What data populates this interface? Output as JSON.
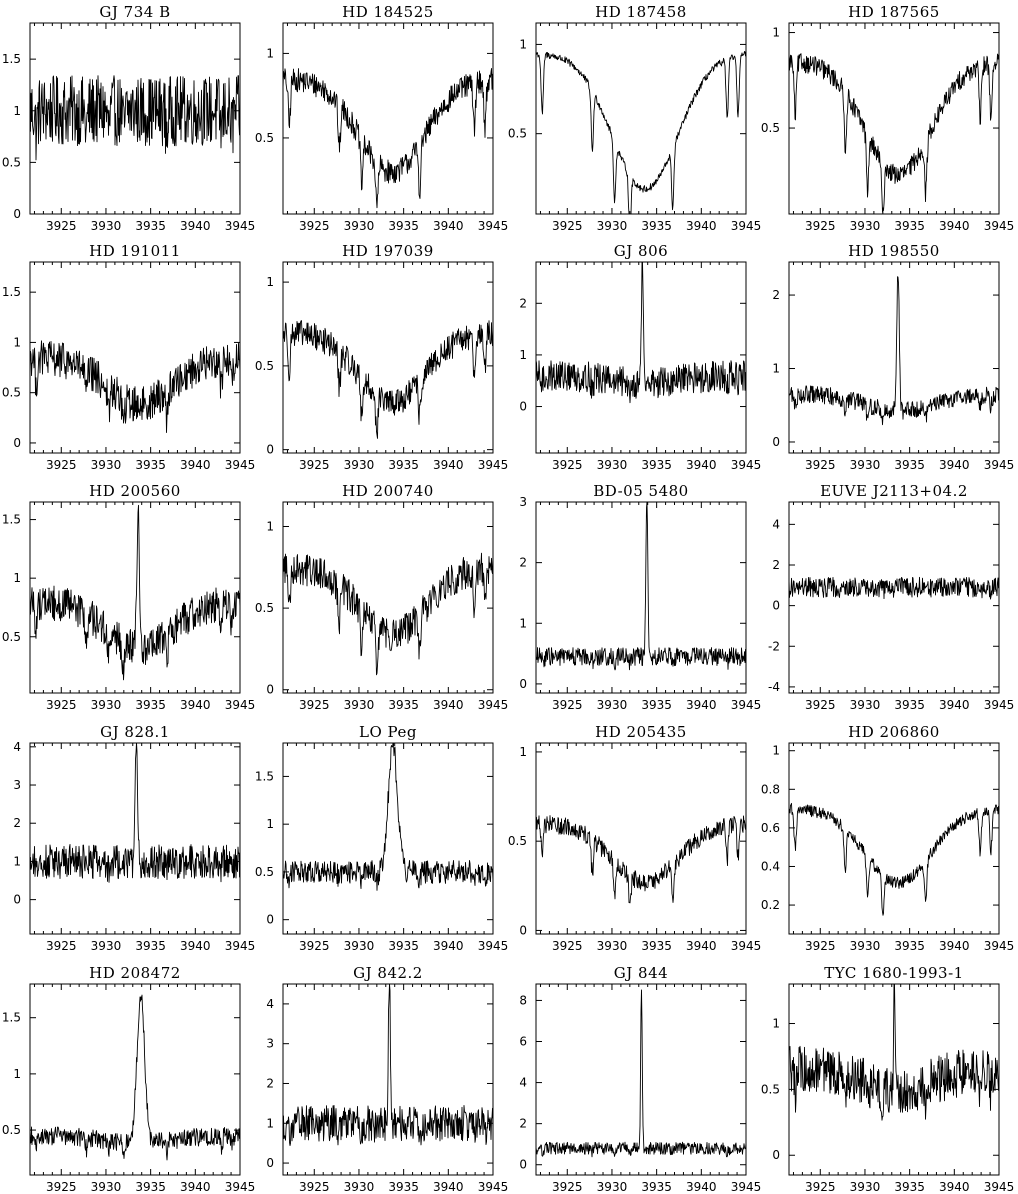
{
  "figure": {
    "background": "#ffffff",
    "line_color": "#000000"
  },
  "chart_data": [
    {
      "type": "line",
      "title": "GJ 734 B",
      "xlim": [
        3921.5,
        3945
      ],
      "ylim": [
        0,
        1.85
      ],
      "xticks": [
        3925,
        3930,
        3935,
        3940,
        3945
      ],
      "yticks": [
        0,
        0.5,
        1,
        1.5
      ],
      "base": 1.0,
      "spike": null,
      "depth": 0.0,
      "noise": 0.34
    },
    {
      "type": "line",
      "title": "HD 184525",
      "xlim": [
        3921.5,
        3945
      ],
      "ylim": [
        0.05,
        1.18
      ],
      "xticks": [
        3925,
        3930,
        3935,
        3940,
        3945
      ],
      "yticks": [
        0.5,
        1
      ],
      "base": 0.85,
      "spike": null,
      "depth": 0.65,
      "noise": 0.07
    },
    {
      "type": "line",
      "title": "HD 187458",
      "xlim": [
        3921.5,
        3945
      ],
      "ylim": [
        0.05,
        1.12
      ],
      "xticks": [
        3925,
        3930,
        3935,
        3940,
        3945
      ],
      "yticks": [
        0.5,
        1
      ],
      "base": 0.95,
      "spike": null,
      "depth": 0.8,
      "noise": 0.02
    },
    {
      "type": "line",
      "title": "HD 187565",
      "xlim": [
        3921.5,
        3945
      ],
      "ylim": [
        0.05,
        1.05
      ],
      "xticks": [
        3925,
        3930,
        3935,
        3940,
        3945
      ],
      "yticks": [
        0.5,
        1
      ],
      "base": 0.85,
      "spike": null,
      "depth": 0.7,
      "noise": 0.05
    },
    {
      "type": "line",
      "title": "HD 191011",
      "xlim": [
        3921.5,
        3945
      ],
      "ylim": [
        -0.1,
        1.8
      ],
      "xticks": [
        3925,
        3930,
        3935,
        3940,
        3945
      ],
      "yticks": [
        0,
        0.5,
        1,
        1.5
      ],
      "base": 0.85,
      "spike": null,
      "depth": 0.55,
      "noise": 0.18
    },
    {
      "type": "line",
      "title": "HD 197039",
      "xlim": [
        3921.5,
        3945
      ],
      "ylim": [
        -0.02,
        1.12
      ],
      "xticks": [
        3925,
        3930,
        3935,
        3940,
        3945
      ],
      "yticks": [
        0,
        0.5,
        1
      ],
      "base": 0.7,
      "spike": null,
      "depth": 0.6,
      "noise": 0.08
    },
    {
      "type": "line",
      "title": "GJ 806",
      "xlim": [
        3921.5,
        3945
      ],
      "ylim": [
        -0.9,
        2.8
      ],
      "xticks": [
        3925,
        3930,
        3935,
        3940,
        3945
      ],
      "yticks": [
        0,
        1,
        2
      ],
      "base": 0.6,
      "spike": {
        "x": 3933.4,
        "y": 2.65,
        "w": 0.15
      },
      "depth": 0.25,
      "noise": 0.3
    },
    {
      "type": "line",
      "title": "HD 198550",
      "xlim": [
        3921.5,
        3945
      ],
      "ylim": [
        -0.15,
        2.45
      ],
      "xticks": [
        3925,
        3930,
        3935,
        3940,
        3945
      ],
      "yticks": [
        0,
        1,
        2
      ],
      "base": 0.65,
      "spike": {
        "x": 3933.7,
        "y": 2.25,
        "w": 0.2
      },
      "depth": 0.35,
      "noise": 0.12
    },
    {
      "type": "line",
      "title": "HD 200560",
      "xlim": [
        3921.5,
        3945
      ],
      "ylim": [
        0.02,
        1.65
      ],
      "xticks": [
        3925,
        3930,
        3935,
        3940,
        3945
      ],
      "yticks": [
        0.5,
        1,
        1.5
      ],
      "base": 0.8,
      "spike": {
        "x": 3933.6,
        "y": 1.55,
        "w": 0.2
      },
      "depth": 0.5,
      "noise": 0.15
    },
    {
      "type": "line",
      "title": "HD 200740",
      "xlim": [
        3921.5,
        3945
      ],
      "ylim": [
        -0.02,
        1.15
      ],
      "xticks": [
        3925,
        3930,
        3935,
        3940,
        3945
      ],
      "yticks": [
        0,
        0.5,
        1
      ],
      "base": 0.75,
      "spike": null,
      "depth": 0.55,
      "noise": 0.1
    },
    {
      "type": "line",
      "title": "BD-05 5480",
      "xlim": [
        3921.5,
        3945
      ],
      "ylim": [
        -0.15,
        3.0
      ],
      "xticks": [
        3925,
        3930,
        3935,
        3940,
        3945
      ],
      "yticks": [
        0,
        1,
        2,
        3
      ],
      "base": 0.45,
      "spike": {
        "x": 3933.9,
        "y": 2.85,
        "w": 0.15
      },
      "depth": 0.0,
      "noise": 0.15
    },
    {
      "type": "line",
      "title": "EUVE J2113+04.2",
      "xlim": [
        3921.5,
        3945
      ],
      "ylim": [
        -4.3,
        5.1
      ],
      "xticks": [
        3925,
        3930,
        3935,
        3940,
        3945
      ],
      "yticks": [
        -4,
        -2,
        0,
        2,
        4
      ],
      "base": 0.9,
      "spike": null,
      "depth": 0.0,
      "noise": 0.5
    },
    {
      "type": "line",
      "title": "GJ 828.1",
      "xlim": [
        3921.5,
        3945
      ],
      "ylim": [
        -0.9,
        4.1
      ],
      "xticks": [
        3925,
        3930,
        3935,
        3940,
        3945
      ],
      "yticks": [
        0,
        1,
        2,
        3,
        4
      ],
      "base": 1.0,
      "spike": {
        "x": 3933.4,
        "y": 3.8,
        "w": 0.18
      },
      "depth": 0.0,
      "noise": 0.45
    },
    {
      "type": "line",
      "title": "LO Peg",
      "xlim": [
        3921.5,
        3945
      ],
      "ylim": [
        -0.15,
        1.85
      ],
      "xticks": [
        3925,
        3930,
        3935,
        3940,
        3945
      ],
      "yticks": [
        0,
        0.5,
        1,
        1.5
      ],
      "base": 0.5,
      "spike": {
        "x": 3933.8,
        "y": 1.6,
        "w": 0.7
      },
      "depth": 0.0,
      "noise": 0.12
    },
    {
      "type": "line",
      "title": "HD 205435",
      "xlim": [
        3921.5,
        3945
      ],
      "ylim": [
        -0.02,
        1.05
      ],
      "xticks": [
        3925,
        3930,
        3935,
        3940,
        3945
      ],
      "yticks": [
        0,
        0.5,
        1
      ],
      "base": 0.6,
      "spike": null,
      "depth": 0.55,
      "noise": 0.05
    },
    {
      "type": "line",
      "title": "HD 206860",
      "xlim": [
        3921.5,
        3945
      ],
      "ylim": [
        0.05,
        1.04
      ],
      "xticks": [
        3925,
        3930,
        3935,
        3940,
        3945
      ],
      "yticks": [
        0.2,
        0.4,
        0.6,
        0.8,
        1
      ],
      "base": 0.7,
      "spike": null,
      "depth": 0.55,
      "noise": 0.03
    },
    {
      "type": "line",
      "title": "HD 208472",
      "xlim": [
        3921.5,
        3945
      ],
      "ylim": [
        0.1,
        1.8
      ],
      "xticks": [
        3925,
        3930,
        3935,
        3940,
        3945
      ],
      "yticks": [
        0.5,
        1,
        1.5
      ],
      "base": 0.45,
      "spike": {
        "x": 3933.9,
        "y": 1.55,
        "w": 0.6
      },
      "depth": 0.15,
      "noise": 0.08
    },
    {
      "type": "line",
      "title": "GJ 842.2",
      "xlim": [
        3921.5,
        3945
      ],
      "ylim": [
        -0.3,
        4.5
      ],
      "xticks": [
        3925,
        3930,
        3935,
        3940,
        3945
      ],
      "yticks": [
        0,
        1,
        2,
        3,
        4
      ],
      "base": 1.0,
      "spike": {
        "x": 3933.4,
        "y": 4.3,
        "w": 0.15
      },
      "depth": 0.0,
      "noise": 0.45
    },
    {
      "type": "line",
      "title": "GJ 844",
      "xlim": [
        3921.5,
        3945
      ],
      "ylim": [
        -0.5,
        8.8
      ],
      "xticks": [
        3925,
        3930,
        3935,
        3940,
        3945
      ],
      "yticks": [
        0,
        2,
        4,
        6,
        8
      ],
      "base": 0.8,
      "spike": {
        "x": 3933.3,
        "y": 8.3,
        "w": 0.12
      },
      "depth": 0.0,
      "noise": 0.3
    },
    {
      "type": "line",
      "title": "TYC 1680-1993-1",
      "xlim": [
        3921.5,
        3945
      ],
      "ylim": [
        -0.15,
        1.3
      ],
      "xticks": [
        3925,
        3930,
        3935,
        3940,
        3945
      ],
      "yticks": [
        0,
        0.5,
        1
      ],
      "base": 0.65,
      "spike": {
        "x": 3933.3,
        "y": 1.2,
        "w": 0.12
      },
      "depth": 0.25,
      "noise": 0.18
    }
  ]
}
